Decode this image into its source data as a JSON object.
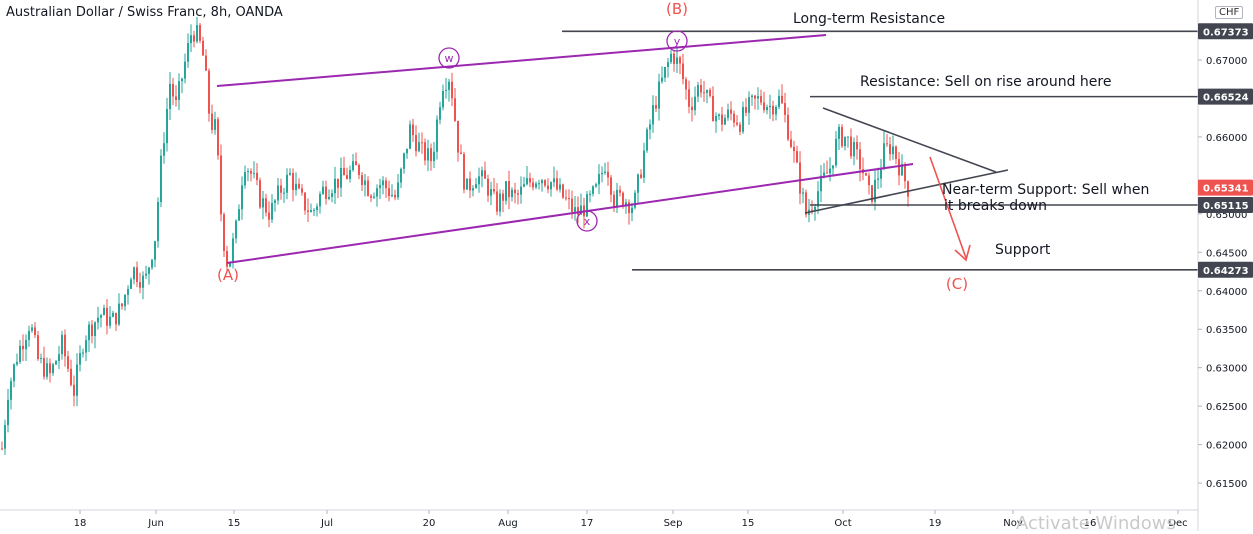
{
  "header": {
    "title": "Australian Dollar / Swiss Franc, 8h, OANDA",
    "currency_badge": "CHF"
  },
  "watermark": "Activate Windows",
  "colors": {
    "bull": "#26a69a",
    "bear": "#ef5350",
    "channel": "#9c27b0",
    "triangle": "#434651",
    "level_line": "#434651",
    "label_red": "#ef5350",
    "price_badge_dark": "#434651",
    "price_badge_current": "#ef5350"
  },
  "chart_data": {
    "type": "candlestick",
    "title": "Australian Dollar / Swiss Franc, 8h, OANDA",
    "ylim": [
      0.6115,
      0.6765
    ],
    "x_tick_labels": [
      "18",
      "Jun",
      "15",
      "Jul",
      "20",
      "Aug",
      "17",
      "Sep",
      "15",
      "Oct",
      "19",
      "Nov",
      "16",
      "Dec"
    ],
    "y_tick_labels": [
      "0.61500",
      "0.62000",
      "0.62500",
      "0.63000",
      "0.63500",
      "0.64000",
      "0.64500",
      "0.65000",
      "0.66000",
      "0.67000"
    ],
    "price_levels": [
      {
        "label": "Long-term Resistance",
        "value": "0.67373"
      },
      {
        "label": "Resistance: Sell on rise around here",
        "value": "0.66524"
      },
      {
        "label": "Near-term Support: Sell when it breaks down",
        "value": "0.65115"
      },
      {
        "label": "Support",
        "value": "0.64273"
      }
    ],
    "current_price": "0.65341",
    "wave_labels": [
      "(A)",
      "(B)",
      "(C)",
      "w",
      "x",
      "y"
    ],
    "annotations": [
      "Long-term Resistance",
      "Resistance: Sell on rise around here",
      "Near-term Support: Sell when",
      "it breaks down",
      "Support"
    ],
    "price_path": [
      [
        0,
        0.617
      ],
      [
        8,
        0.627
      ],
      [
        18,
        0.632
      ],
      [
        30,
        0.636
      ],
      [
        38,
        0.631
      ],
      [
        50,
        0.629
      ],
      [
        62,
        0.633
      ],
      [
        74,
        0.627
      ],
      [
        84,
        0.634
      ],
      [
        100,
        0.637
      ],
      [
        112,
        0.636
      ],
      [
        122,
        0.638
      ],
      [
        132,
        0.643
      ],
      [
        145,
        0.641
      ],
      [
        155,
        0.647
      ],
      [
        162,
        0.658
      ],
      [
        170,
        0.667
      ],
      [
        176,
        0.664
      ],
      [
        184,
        0.669
      ],
      [
        192,
        0.674
      ],
      [
        198,
        0.673
      ],
      [
        204,
        0.67
      ],
      [
        210,
        0.662
      ],
      [
        216,
        0.661
      ],
      [
        222,
        0.648
      ],
      [
        228,
        0.643
      ],
      [
        236,
        0.648
      ],
      [
        244,
        0.657
      ],
      [
        252,
        0.655
      ],
      [
        260,
        0.652
      ],
      [
        270,
        0.65
      ],
      [
        280,
        0.653
      ],
      [
        290,
        0.655
      ],
      [
        300,
        0.652
      ],
      [
        312,
        0.65
      ],
      [
        322,
        0.653
      ],
      [
        334,
        0.654
      ],
      [
        346,
        0.655
      ],
      [
        358,
        0.656
      ],
      [
        370,
        0.653
      ],
      [
        382,
        0.654
      ],
      [
        396,
        0.652
      ],
      [
        410,
        0.661
      ],
      [
        422,
        0.658
      ],
      [
        432,
        0.657
      ],
      [
        442,
        0.667
      ],
      [
        450,
        0.668
      ],
      [
        458,
        0.659
      ],
      [
        466,
        0.653
      ],
      [
        476,
        0.655
      ],
      [
        486,
        0.654
      ],
      [
        496,
        0.651
      ],
      [
        506,
        0.653
      ],
      [
        516,
        0.652
      ],
      [
        528,
        0.654
      ],
      [
        540,
        0.655
      ],
      [
        552,
        0.654
      ],
      [
        564,
        0.652
      ],
      [
        576,
        0.65
      ],
      [
        586,
        0.651
      ],
      [
        596,
        0.653
      ],
      [
        606,
        0.657
      ],
      [
        614,
        0.652
      ],
      [
        624,
        0.652
      ],
      [
        634,
        0.651
      ],
      [
        644,
        0.658
      ],
      [
        654,
        0.664
      ],
      [
        664,
        0.668
      ],
      [
        672,
        0.671
      ],
      [
        680,
        0.669
      ],
      [
        690,
        0.664
      ],
      [
        700,
        0.667
      ],
      [
        710,
        0.664
      ],
      [
        720,
        0.662
      ],
      [
        730,
        0.663
      ],
      [
        740,
        0.662
      ],
      [
        750,
        0.664
      ],
      [
        760,
        0.665
      ],
      [
        770,
        0.664
      ],
      [
        780,
        0.665
      ],
      [
        790,
        0.66
      ],
      [
        798,
        0.655
      ],
      [
        806,
        0.65
      ],
      [
        814,
        0.652
      ],
      [
        822,
        0.654
      ],
      [
        830,
        0.656
      ],
      [
        838,
        0.66
      ],
      [
        846,
        0.66
      ],
      [
        854,
        0.658
      ],
      [
        862,
        0.656
      ],
      [
        870,
        0.652
      ],
      [
        876,
        0.654
      ],
      [
        884,
        0.658
      ],
      [
        892,
        0.659
      ],
      [
        900,
        0.656
      ],
      [
        906,
        0.654
      ],
      [
        909,
        0.653
      ]
    ]
  }
}
